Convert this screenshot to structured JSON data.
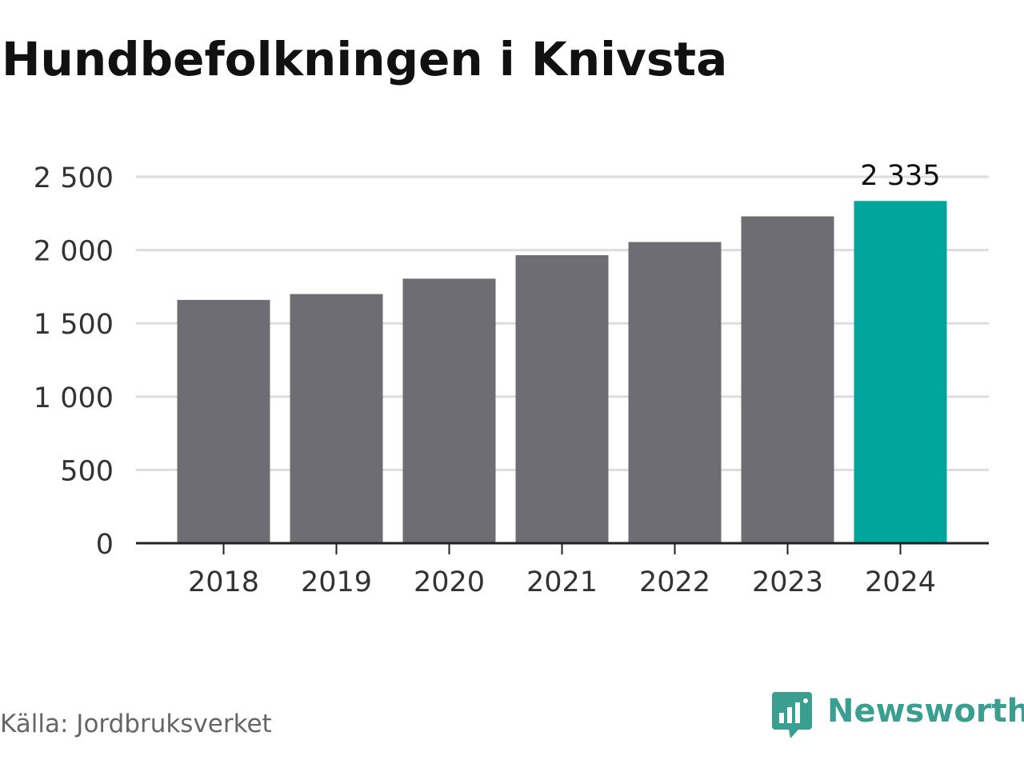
{
  "title": "Hundbefolkningen i Knivsta",
  "source": "Källa: Jordbruksverket",
  "brand": {
    "name": "Newsworthy",
    "icon": "newsworthy-logo-icon",
    "color": "#3a9e90"
  },
  "colors": {
    "bar": "#6e6d73",
    "highlight": "#00a59b",
    "grid": "#dddddd",
    "axis": "#222222"
  },
  "chart_data": {
    "type": "bar",
    "categories": [
      "2018",
      "2019",
      "2020",
      "2021",
      "2022",
      "2023",
      "2024"
    ],
    "values": [
      1660,
      1700,
      1805,
      1965,
      2055,
      2230,
      2335
    ],
    "ylim": [
      0,
      2500
    ],
    "yticks": [
      0,
      500,
      1000,
      1500,
      2000,
      2500
    ],
    "ytick_labels": [
      "0",
      "500",
      "1 000",
      "1 500",
      "2 000",
      "2 500"
    ],
    "highlight_index": 6,
    "data_labels": [
      {
        "index": 6,
        "text": "2 335"
      }
    ],
    "grid": true,
    "xlabel": "",
    "ylabel": ""
  }
}
